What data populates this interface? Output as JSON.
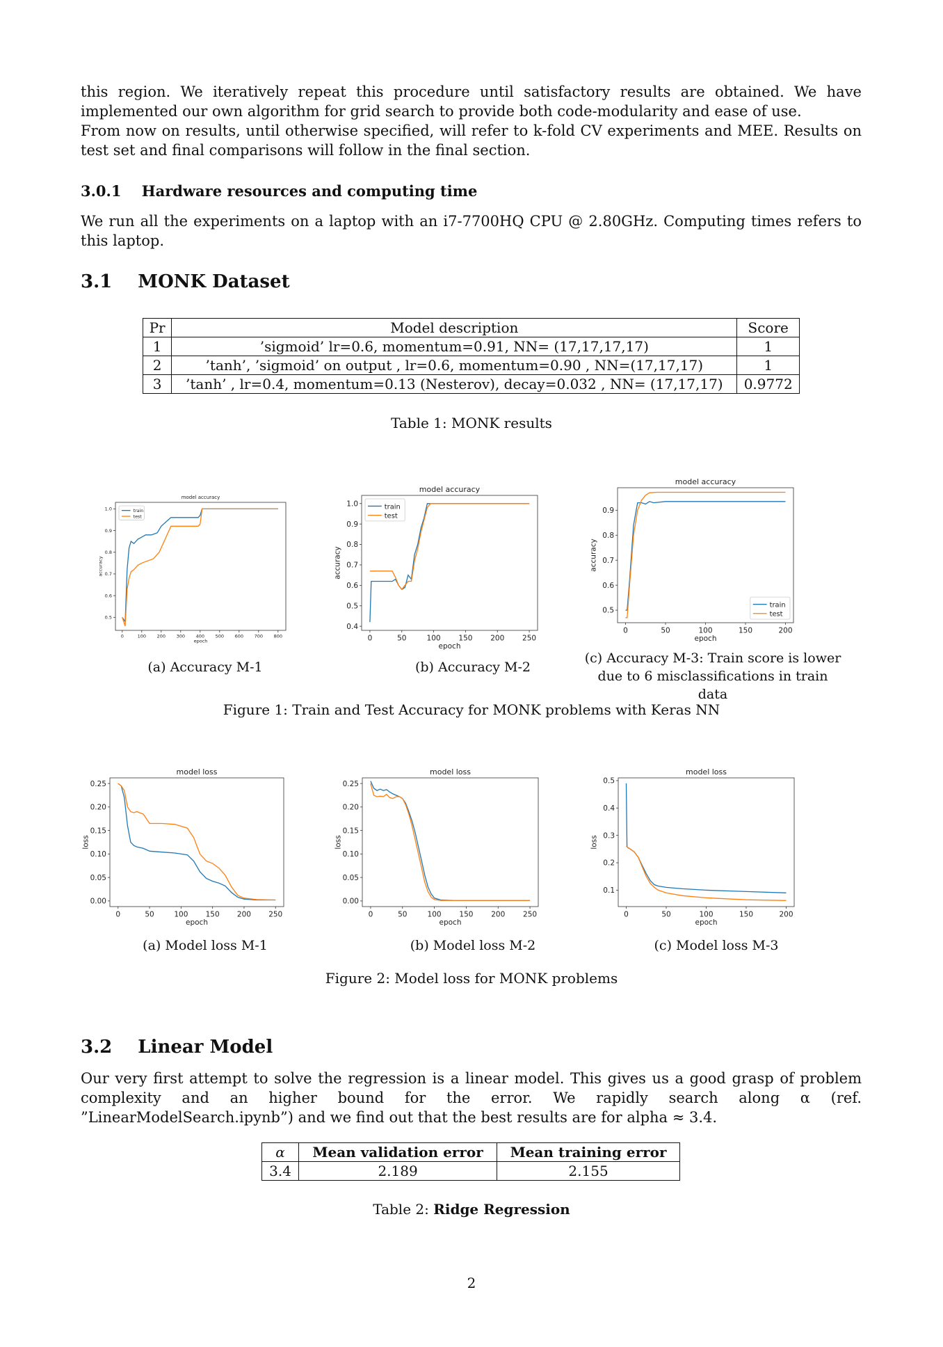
{
  "intro": {
    "p1": "this region. We iteratively repeat this procedure until satisfactory results are obtained. We have implemented our own algorithm for grid search to provide both code-modularity and ease of use.",
    "p2": "From now on results, until otherwise specified, will refer to k-fold CV experiments and MEE. Results on test set and final comparisons will follow in the final section."
  },
  "hw_section": {
    "number": "3.0.1",
    "title": "Hardware resources and computing time",
    "text": "We run all the experiments on a laptop with an i7-7700HQ CPU @ 2.80GHz. Computing times refers to this laptop."
  },
  "monk_section": {
    "number": "3.1",
    "title": "MONK Dataset"
  },
  "table1": {
    "headers": [
      "Pr",
      "Model description",
      "Score"
    ],
    "rows": [
      [
        "1",
        "’sigmoid’ lr=0.6, momentum=0.91, NN= (17,17,17,17)",
        "1"
      ],
      [
        "2",
        "’tanh’, ’sigmoid’ on output , lr=0.6, momentum=0.90 , NN=(17,17,17)",
        "1"
      ],
      [
        "3",
        "’tanh’ , lr=0.4, momentum=0.13 (Nesterov), decay=0.032 , NN= (17,17,17)",
        "0.9772"
      ]
    ],
    "caption": "Table 1: MONK results"
  },
  "figure1": {
    "caption": "Figure 1: Train and Test Accuracy for MONK problems with Keras NN",
    "sub": [
      "(a) Accuracy M-1",
      "(b) Accuracy M-2",
      "(c) Accuracy M-3: Train score is lower due to 6 misclassifications in train data"
    ]
  },
  "figure2": {
    "caption": "Figure 2: Model loss for MONK problems",
    "sub": [
      "(a) Model loss M-1",
      "(b) Model loss M-2",
      "(c) Model loss M-3"
    ]
  },
  "linear_section": {
    "number": "3.2",
    "title": "Linear Model",
    "text": "Our very first attempt to solve the regression is a linear model. This gives us a good grasp of problem complexity and an higher bound for the error. We rapidly search along α (ref. ”LinearModelSearch.ipynb”) and we find out that the best results are for alpha ≈ 3.4."
  },
  "table2": {
    "headers": [
      "α",
      "Mean validation error",
      "Mean training error"
    ],
    "row": [
      "3.4",
      "2.189",
      "2.155"
    ],
    "caption_prefix": "Table 2: ",
    "caption_bold": "Ridge Regression"
  },
  "page_number": "2",
  "colors": {
    "train": "#1f77b4",
    "test": "#ff7f0e"
  },
  "chart_data": [
    {
      "id": "acc-m1",
      "type": "line",
      "title": "model accuracy",
      "xlabel": "epoch",
      "ylabel": "accuracy",
      "xlim": [
        -35,
        840
      ],
      "ylim": [
        0.44,
        1.03
      ],
      "xticks": [
        0,
        100,
        200,
        300,
        400,
        500,
        600,
        700,
        800
      ],
      "yticks": [
        0.5,
        0.6,
        0.7,
        0.8,
        0.9,
        1.0
      ],
      "legend": "top-left",
      "series": [
        {
          "name": "train",
          "x": [
            0,
            15,
            25,
            35,
            45,
            60,
            80,
            100,
            120,
            150,
            180,
            200,
            250,
            300,
            350,
            390,
            400,
            410,
            450,
            500,
            600,
            700,
            800
          ],
          "y": [
            0.5,
            0.48,
            0.72,
            0.82,
            0.85,
            0.84,
            0.86,
            0.87,
            0.88,
            0.88,
            0.89,
            0.92,
            0.96,
            0.96,
            0.96,
            0.96,
            0.97,
            1.0,
            1.0,
            1.0,
            1.0,
            1.0,
            1.0
          ]
        },
        {
          "name": "test",
          "x": [
            0,
            15,
            25,
            35,
            45,
            60,
            80,
            100,
            130,
            160,
            190,
            220,
            250,
            300,
            350,
            390,
            400,
            410,
            450,
            500,
            600,
            700,
            800
          ],
          "y": [
            0.5,
            0.46,
            0.63,
            0.68,
            0.71,
            0.72,
            0.74,
            0.75,
            0.76,
            0.77,
            0.8,
            0.86,
            0.92,
            0.92,
            0.92,
            0.92,
            0.93,
            1.0,
            1.0,
            1.0,
            1.0,
            1.0,
            1.0
          ]
        }
      ]
    },
    {
      "id": "acc-m2",
      "type": "line",
      "title": "model accuracy",
      "xlabel": "epoch",
      "ylabel": "accuracy",
      "xlim": [
        -13,
        263
      ],
      "ylim": [
        0.38,
        1.04
      ],
      "xticks": [
        0,
        50,
        100,
        150,
        200,
        250
      ],
      "yticks": [
        0.4,
        0.5,
        0.6,
        0.7,
        0.8,
        0.9,
        1.0
      ],
      "legend": "top-left",
      "series": [
        {
          "name": "train",
          "x": [
            0,
            2,
            5,
            20,
            35,
            40,
            45,
            50,
            55,
            60,
            65,
            70,
            75,
            80,
            85,
            90,
            95,
            100,
            150,
            200,
            250
          ],
          "y": [
            0.42,
            0.62,
            0.62,
            0.62,
            0.62,
            0.63,
            0.6,
            0.58,
            0.59,
            0.65,
            0.63,
            0.75,
            0.8,
            0.88,
            0.93,
            1.0,
            1.0,
            1.0,
            1.0,
            1.0,
            1.0
          ]
        },
        {
          "name": "test",
          "x": [
            0,
            5,
            20,
            35,
            40,
            45,
            50,
            55,
            60,
            65,
            70,
            75,
            80,
            85,
            90,
            95,
            100,
            150,
            200,
            250
          ],
          "y": [
            0.67,
            0.67,
            0.67,
            0.67,
            0.64,
            0.6,
            0.58,
            0.6,
            0.62,
            0.62,
            0.72,
            0.78,
            0.86,
            0.92,
            0.98,
            1.0,
            1.0,
            1.0,
            1.0,
            1.0
          ]
        }
      ]
    },
    {
      "id": "acc-m3",
      "type": "line",
      "title": "model accuracy",
      "xlabel": "epoch",
      "ylabel": "accuracy",
      "xlim": [
        -10,
        210
      ],
      "ylim": [
        0.45,
        0.99
      ],
      "xticks": [
        0,
        50,
        100,
        150,
        200
      ],
      "yticks": [
        0.5,
        0.6,
        0.7,
        0.8,
        0.9
      ],
      "legend": "bottom-right",
      "series": [
        {
          "name": "train",
          "x": [
            0,
            2,
            5,
            10,
            15,
            20,
            25,
            30,
            35,
            50,
            100,
            150,
            200
          ],
          "y": [
            0.5,
            0.5,
            0.62,
            0.84,
            0.93,
            0.93,
            0.925,
            0.935,
            0.93,
            0.935,
            0.935,
            0.935,
            0.935
          ]
        },
        {
          "name": "test",
          "x": [
            0,
            2,
            5,
            10,
            15,
            20,
            25,
            30,
            40,
            50,
            100,
            150,
            200
          ],
          "y": [
            0.47,
            0.47,
            0.6,
            0.8,
            0.9,
            0.94,
            0.96,
            0.97,
            0.972,
            0.972,
            0.972,
            0.972,
            0.972
          ]
        }
      ]
    },
    {
      "id": "loss-m1",
      "type": "line",
      "title": "model loss",
      "xlabel": "epoch",
      "ylabel": "loss",
      "xlim": [
        -13,
        263
      ],
      "ylim": [
        -0.012,
        0.262
      ],
      "xticks": [
        0,
        50,
        100,
        150,
        200,
        250
      ],
      "yticks": [
        0.0,
        0.05,
        0.1,
        0.15,
        0.2,
        0.25
      ],
      "series": [
        {
          "name": "train",
          "x": [
            0,
            5,
            10,
            15,
            20,
            25,
            30,
            40,
            50,
            70,
            90,
            110,
            120,
            130,
            140,
            150,
            160,
            170,
            180,
            190,
            200,
            220,
            250
          ],
          "y": [
            0.25,
            0.245,
            0.22,
            0.16,
            0.125,
            0.118,
            0.115,
            0.112,
            0.106,
            0.104,
            0.102,
            0.098,
            0.085,
            0.062,
            0.048,
            0.042,
            0.038,
            0.032,
            0.018,
            0.008,
            0.004,
            0.002,
            0.002
          ]
        },
        {
          "name": "test",
          "x": [
            0,
            5,
            10,
            15,
            20,
            25,
            30,
            40,
            50,
            60,
            70,
            90,
            110,
            120,
            130,
            140,
            150,
            160,
            170,
            180,
            190,
            200,
            220,
            250
          ],
          "y": [
            0.25,
            0.245,
            0.235,
            0.2,
            0.19,
            0.188,
            0.19,
            0.185,
            0.165,
            0.165,
            0.165,
            0.163,
            0.155,
            0.135,
            0.1,
            0.085,
            0.08,
            0.07,
            0.055,
            0.03,
            0.012,
            0.006,
            0.003,
            0.002
          ]
        }
      ]
    },
    {
      "id": "loss-m2",
      "type": "line",
      "title": "model loss",
      "xlabel": "epoch",
      "ylabel": "loss",
      "xlim": [
        -13,
        263
      ],
      "ylim": [
        -0.012,
        0.262
      ],
      "xticks": [
        0,
        50,
        100,
        150,
        200,
        250
      ],
      "yticks": [
        0.0,
        0.05,
        0.1,
        0.15,
        0.2,
        0.25
      ],
      "series": [
        {
          "name": "train",
          "x": [
            0,
            5,
            10,
            15,
            20,
            25,
            30,
            35,
            40,
            45,
            50,
            55,
            60,
            65,
            70,
            75,
            80,
            85,
            90,
            95,
            100,
            110,
            130,
            150,
            200,
            250
          ],
          "y": [
            0.255,
            0.24,
            0.235,
            0.238,
            0.235,
            0.237,
            0.232,
            0.228,
            0.225,
            0.222,
            0.218,
            0.208,
            0.19,
            0.17,
            0.145,
            0.115,
            0.085,
            0.055,
            0.03,
            0.015,
            0.006,
            0.002,
            0.001,
            0.001,
            0.001,
            0.001
          ]
        },
        {
          "name": "test",
          "x": [
            0,
            5,
            10,
            15,
            20,
            25,
            30,
            35,
            40,
            45,
            50,
            55,
            60,
            65,
            70,
            75,
            80,
            85,
            90,
            95,
            100,
            110,
            130,
            150,
            200,
            250
          ],
          "y": [
            0.25,
            0.225,
            0.222,
            0.223,
            0.222,
            0.227,
            0.22,
            0.218,
            0.222,
            0.222,
            0.218,
            0.205,
            0.185,
            0.16,
            0.13,
            0.1,
            0.07,
            0.04,
            0.02,
            0.008,
            0.003,
            0.001,
            0.001,
            0.001,
            0.001,
            0.001
          ]
        }
      ]
    },
    {
      "id": "loss-m3",
      "type": "line",
      "title": "model loss",
      "xlabel": "epoch",
      "ylabel": "loss",
      "xlim": [
        -10,
        210
      ],
      "ylim": [
        0.04,
        0.51
      ],
      "xticks": [
        0,
        50,
        100,
        150,
        200
      ],
      "yticks": [
        0.1,
        0.2,
        0.3,
        0.4,
        0.5
      ],
      "series": [
        {
          "name": "train",
          "x": [
            0,
            1,
            2,
            5,
            10,
            15,
            20,
            25,
            30,
            35,
            40,
            50,
            70,
            100,
            150,
            200
          ],
          "y": [
            0.49,
            0.26,
            0.255,
            0.25,
            0.24,
            0.22,
            0.19,
            0.16,
            0.135,
            0.12,
            0.115,
            0.11,
            0.105,
            0.1,
            0.095,
            0.09
          ]
        },
        {
          "name": "test",
          "x": [
            0,
            5,
            10,
            15,
            20,
            25,
            30,
            35,
            40,
            50,
            70,
            100,
            150,
            200
          ],
          "y": [
            0.26,
            0.25,
            0.24,
            0.22,
            0.185,
            0.15,
            0.125,
            0.11,
            0.1,
            0.09,
            0.08,
            0.072,
            0.065,
            0.062
          ]
        }
      ]
    }
  ]
}
